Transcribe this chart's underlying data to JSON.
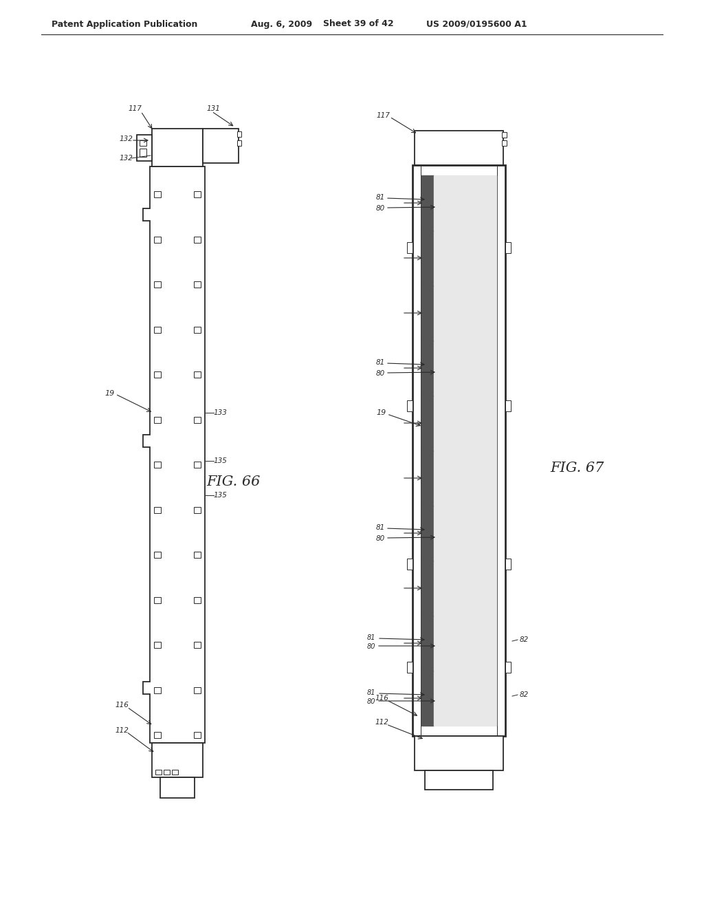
{
  "bg_color": "#ffffff",
  "line_color": "#2a2a2a",
  "header_text": "Patent Application Publication",
  "header_date": "Aug. 6, 2009",
  "header_sheet": "Sheet 39 of 42",
  "header_patent": "US 2009/0195600 A1",
  "fig66_label": "FIG. 66",
  "fig67_label": "FIG. 67"
}
